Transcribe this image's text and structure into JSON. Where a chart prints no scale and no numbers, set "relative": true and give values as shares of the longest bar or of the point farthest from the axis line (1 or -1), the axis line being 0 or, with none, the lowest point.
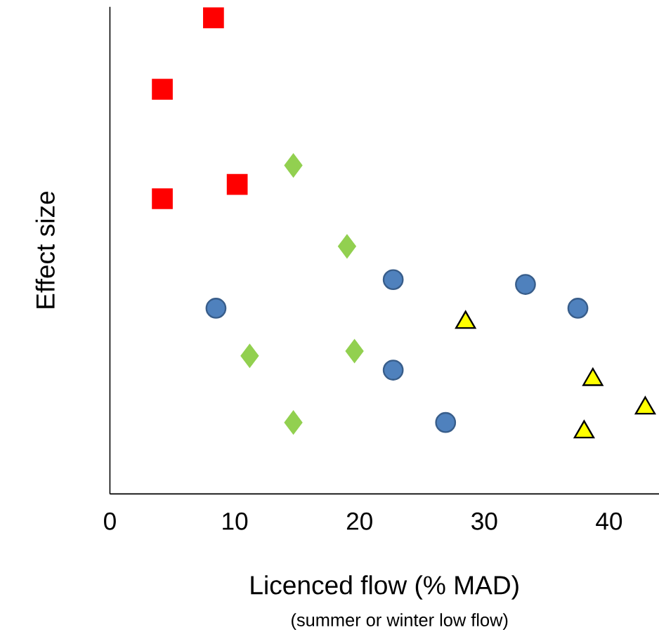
{
  "chart_data": {
    "type": "scatter",
    "xlabel": "Licenced flow (% MAD)",
    "ylabel": "Effect size",
    "annotations": [
      "(summer or winter low flow)"
    ],
    "relative": true,
    "xlim": [
      0,
      44
    ],
    "xticks": [
      0,
      10,
      20,
      30,
      40
    ],
    "series": [
      {
        "color": "#ff0000",
        "marker": "square",
        "x": [
          8.3,
          4.2,
          4.2,
          10.2
        ],
        "values": [
          1,
          0.85,
          0.62,
          0.65
        ]
      },
      {
        "color": "#92d050",
        "marker": "diamond",
        "x": [
          14.7,
          19.0,
          11.2,
          19.6,
          14.7
        ],
        "values": [
          0.69,
          0.52,
          0.29,
          0.3,
          0.15
        ]
      },
      {
        "color": "#4f81bd",
        "marker": "circle",
        "x": [
          8.5,
          22.7,
          33.3,
          37.5,
          22.7,
          26.9
        ],
        "values": [
          0.39,
          0.45,
          0.44,
          0.39,
          0.26,
          0.15
        ]
      },
      {
        "color": "#ffff00",
        "marker": "triangle",
        "x": [
          28.5,
          38.7,
          42.9,
          38.0
        ],
        "values": [
          0.36,
          0.24,
          0.18,
          0.13
        ]
      }
    ]
  }
}
